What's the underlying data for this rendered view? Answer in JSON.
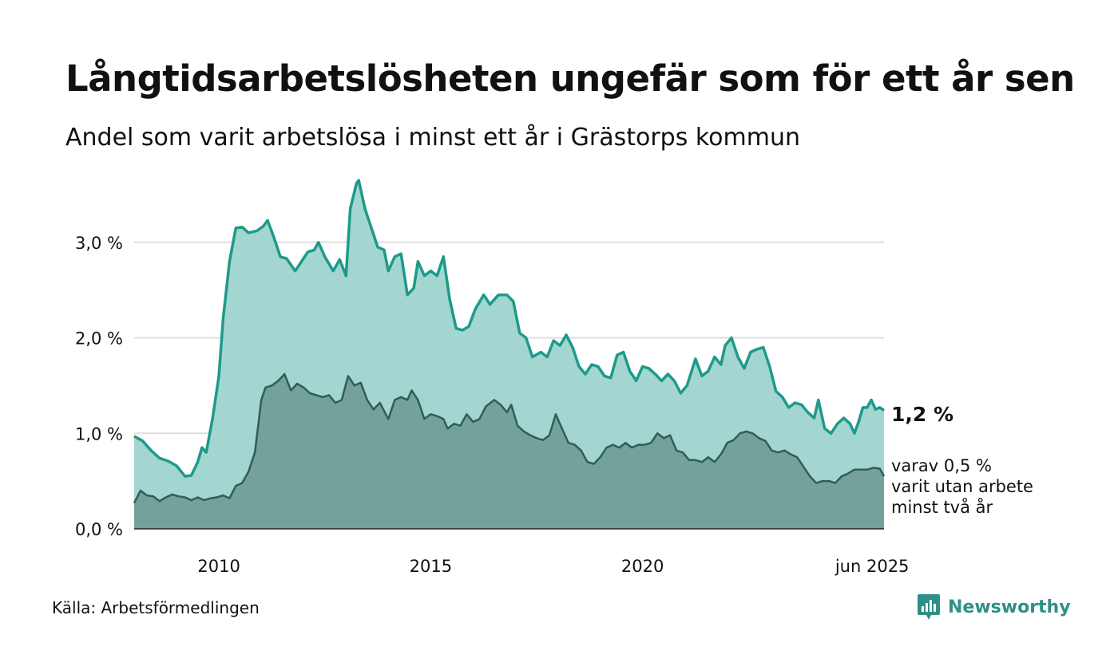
{
  "title": "Långtidsarbetslösheten ungefär som för ett år sen",
  "subtitle": "Andel som varit arbetslösa i minst ett år i Grästorps kommun",
  "source": "Källa: Arbetsförmedlingen",
  "brand": "Newsworthy",
  "colors": {
    "main_line": "#1d9a8a",
    "main_fill": "#a4d6d1",
    "sub_line": "#2f5e57",
    "sub_fill": "#74a29b",
    "grid": "#dddddd",
    "brand": "#2e8f86"
  },
  "icons": {
    "logo": "newsworthy-chat-bars-icon"
  },
  "chart_data": {
    "type": "area",
    "x_unit": "year (decimal, monthly data)",
    "xlim": [
      2008.0,
      2025.42
    ],
    "ylim": [
      0,
      3.7
    ],
    "grid": "horizontal",
    "y_ticks": [
      0,
      1,
      2,
      3
    ],
    "y_tick_labels": [
      "0,0 %",
      "1,0 %",
      "2,0 %",
      "3,0 %"
    ],
    "x_ticks": [
      2010,
      2015,
      2020,
      2025.42
    ],
    "x_tick_labels": [
      "2010",
      "2015",
      "2020",
      "jun 2025"
    ],
    "end_label": "1,2 %",
    "sub_note": [
      "varav 0,5 %",
      "varit utan arbete",
      "minst två år"
    ],
    "series": [
      {
        "points": [
          [
            2008.0,
            0.97
          ],
          [
            2008.2,
            0.92
          ],
          [
            2008.4,
            0.82
          ],
          [
            2008.6,
            0.74
          ],
          [
            2008.8,
            0.71
          ],
          [
            2009.0,
            0.66
          ],
          [
            2009.2,
            0.55
          ],
          [
            2009.35,
            0.56
          ],
          [
            2009.5,
            0.7
          ],
          [
            2009.6,
            0.85
          ],
          [
            2009.7,
            0.8
          ],
          [
            2009.85,
            1.15
          ],
          [
            2010.0,
            1.6
          ],
          [
            2010.1,
            2.2
          ],
          [
            2010.25,
            2.8
          ],
          [
            2010.4,
            3.15
          ],
          [
            2010.55,
            3.16
          ],
          [
            2010.7,
            3.1
          ],
          [
            2010.9,
            3.12
          ],
          [
            2011.05,
            3.17
          ],
          [
            2011.15,
            3.23
          ],
          [
            2011.3,
            3.05
          ],
          [
            2011.45,
            2.85
          ],
          [
            2011.6,
            2.83
          ],
          [
            2011.8,
            2.7
          ],
          [
            2011.95,
            2.8
          ],
          [
            2012.1,
            2.9
          ],
          [
            2012.25,
            2.92
          ],
          [
            2012.35,
            3.0
          ],
          [
            2012.5,
            2.85
          ],
          [
            2012.7,
            2.7
          ],
          [
            2012.85,
            2.82
          ],
          [
            2013.0,
            2.65
          ],
          [
            2013.1,
            3.35
          ],
          [
            2013.25,
            3.62
          ],
          [
            2013.3,
            3.65
          ],
          [
            2013.45,
            3.35
          ],
          [
            2013.6,
            3.15
          ],
          [
            2013.75,
            2.95
          ],
          [
            2013.9,
            2.92
          ],
          [
            2014.0,
            2.7
          ],
          [
            2014.15,
            2.85
          ],
          [
            2014.3,
            2.88
          ],
          [
            2014.45,
            2.45
          ],
          [
            2014.6,
            2.52
          ],
          [
            2014.7,
            2.8
          ],
          [
            2014.85,
            2.65
          ],
          [
            2015.0,
            2.7
          ],
          [
            2015.15,
            2.65
          ],
          [
            2015.3,
            2.85
          ],
          [
            2015.45,
            2.4
          ],
          [
            2015.6,
            2.1
          ],
          [
            2015.75,
            2.08
          ],
          [
            2015.9,
            2.12
          ],
          [
            2016.05,
            2.3
          ],
          [
            2016.25,
            2.45
          ],
          [
            2016.4,
            2.35
          ],
          [
            2016.6,
            2.45
          ],
          [
            2016.8,
            2.45
          ],
          [
            2016.95,
            2.38
          ],
          [
            2017.1,
            2.05
          ],
          [
            2017.25,
            2.0
          ],
          [
            2017.4,
            1.8
          ],
          [
            2017.6,
            1.85
          ],
          [
            2017.75,
            1.8
          ],
          [
            2017.9,
            1.97
          ],
          [
            2018.05,
            1.92
          ],
          [
            2018.2,
            2.03
          ],
          [
            2018.35,
            1.9
          ],
          [
            2018.5,
            1.7
          ],
          [
            2018.65,
            1.62
          ],
          [
            2018.8,
            1.72
          ],
          [
            2018.95,
            1.7
          ],
          [
            2019.1,
            1.6
          ],
          [
            2019.25,
            1.58
          ],
          [
            2019.4,
            1.82
          ],
          [
            2019.55,
            1.85
          ],
          [
            2019.7,
            1.65
          ],
          [
            2019.85,
            1.55
          ],
          [
            2020.0,
            1.7
          ],
          [
            2020.15,
            1.68
          ],
          [
            2020.3,
            1.62
          ],
          [
            2020.45,
            1.55
          ],
          [
            2020.6,
            1.62
          ],
          [
            2020.75,
            1.55
          ],
          [
            2020.9,
            1.42
          ],
          [
            2021.05,
            1.5
          ],
          [
            2021.25,
            1.78
          ],
          [
            2021.4,
            1.6
          ],
          [
            2021.55,
            1.65
          ],
          [
            2021.7,
            1.8
          ],
          [
            2021.85,
            1.72
          ],
          [
            2021.95,
            1.92
          ],
          [
            2022.1,
            2.0
          ],
          [
            2022.25,
            1.8
          ],
          [
            2022.4,
            1.68
          ],
          [
            2022.55,
            1.85
          ],
          [
            2022.7,
            1.88
          ],
          [
            2022.85,
            1.9
          ],
          [
            2023.0,
            1.7
          ],
          [
            2023.15,
            1.44
          ],
          [
            2023.3,
            1.38
          ],
          [
            2023.45,
            1.27
          ],
          [
            2023.6,
            1.32
          ],
          [
            2023.75,
            1.3
          ],
          [
            2023.9,
            1.22
          ],
          [
            2024.05,
            1.16
          ],
          [
            2024.15,
            1.35
          ],
          [
            2024.3,
            1.05
          ],
          [
            2024.45,
            1.0
          ],
          [
            2024.6,
            1.1
          ],
          [
            2024.75,
            1.16
          ],
          [
            2024.9,
            1.1
          ],
          [
            2025.0,
            1.0
          ],
          [
            2025.1,
            1.12
          ],
          [
            2025.2,
            1.27
          ],
          [
            2025.3,
            1.27
          ],
          [
            2025.4,
            1.35
          ],
          [
            2025.5,
            1.25
          ],
          [
            2025.6,
            1.27
          ],
          [
            2025.7,
            1.24
          ]
        ]
      },
      {
        "points": [
          [
            2008.0,
            0.27
          ],
          [
            2008.15,
            0.4
          ],
          [
            2008.3,
            0.35
          ],
          [
            2008.45,
            0.34
          ],
          [
            2008.6,
            0.29
          ],
          [
            2008.75,
            0.33
          ],
          [
            2008.9,
            0.36
          ],
          [
            2009.05,
            0.34
          ],
          [
            2009.2,
            0.33
          ],
          [
            2009.35,
            0.3
          ],
          [
            2009.5,
            0.33
          ],
          [
            2009.65,
            0.3
          ],
          [
            2009.8,
            0.32
          ],
          [
            2009.95,
            0.33
          ],
          [
            2010.1,
            0.35
          ],
          [
            2010.25,
            0.32
          ],
          [
            2010.4,
            0.45
          ],
          [
            2010.55,
            0.48
          ],
          [
            2010.7,
            0.6
          ],
          [
            2010.85,
            0.8
          ],
          [
            2011.0,
            1.35
          ],
          [
            2011.1,
            1.48
          ],
          [
            2011.25,
            1.5
          ],
          [
            2011.4,
            1.55
          ],
          [
            2011.55,
            1.62
          ],
          [
            2011.7,
            1.45
          ],
          [
            2011.85,
            1.52
          ],
          [
            2012.0,
            1.48
          ],
          [
            2012.15,
            1.42
          ],
          [
            2012.3,
            1.4
          ],
          [
            2012.45,
            1.38
          ],
          [
            2012.6,
            1.4
          ],
          [
            2012.75,
            1.32
          ],
          [
            2012.9,
            1.35
          ],
          [
            2013.05,
            1.6
          ],
          [
            2013.2,
            1.5
          ],
          [
            2013.35,
            1.53
          ],
          [
            2013.5,
            1.35
          ],
          [
            2013.65,
            1.25
          ],
          [
            2013.8,
            1.32
          ],
          [
            2014.0,
            1.15
          ],
          [
            2014.15,
            1.35
          ],
          [
            2014.3,
            1.38
          ],
          [
            2014.45,
            1.35
          ],
          [
            2014.55,
            1.45
          ],
          [
            2014.7,
            1.35
          ],
          [
            2014.85,
            1.15
          ],
          [
            2015.0,
            1.2
          ],
          [
            2015.15,
            1.18
          ],
          [
            2015.3,
            1.15
          ],
          [
            2015.4,
            1.05
          ],
          [
            2015.55,
            1.1
          ],
          [
            2015.7,
            1.08
          ],
          [
            2015.85,
            1.2
          ],
          [
            2016.0,
            1.12
          ],
          [
            2016.15,
            1.15
          ],
          [
            2016.3,
            1.28
          ],
          [
            2016.5,
            1.35
          ],
          [
            2016.65,
            1.3
          ],
          [
            2016.8,
            1.22
          ],
          [
            2016.9,
            1.3
          ],
          [
            2017.05,
            1.08
          ],
          [
            2017.2,
            1.02
          ],
          [
            2017.35,
            0.98
          ],
          [
            2017.5,
            0.95
          ],
          [
            2017.65,
            0.93
          ],
          [
            2017.8,
            0.98
          ],
          [
            2017.95,
            1.2
          ],
          [
            2018.1,
            1.05
          ],
          [
            2018.25,
            0.9
          ],
          [
            2018.4,
            0.88
          ],
          [
            2018.55,
            0.82
          ],
          [
            2018.7,
            0.7
          ],
          [
            2018.85,
            0.68
          ],
          [
            2019.0,
            0.75
          ],
          [
            2019.15,
            0.85
          ],
          [
            2019.3,
            0.88
          ],
          [
            2019.45,
            0.85
          ],
          [
            2019.6,
            0.9
          ],
          [
            2019.75,
            0.85
          ],
          [
            2019.9,
            0.88
          ],
          [
            2020.05,
            0.88
          ],
          [
            2020.2,
            0.9
          ],
          [
            2020.35,
            1.0
          ],
          [
            2020.5,
            0.95
          ],
          [
            2020.65,
            0.98
          ],
          [
            2020.8,
            0.82
          ],
          [
            2020.95,
            0.8
          ],
          [
            2021.1,
            0.72
          ],
          [
            2021.25,
            0.72
          ],
          [
            2021.4,
            0.7
          ],
          [
            2021.55,
            0.75
          ],
          [
            2021.7,
            0.7
          ],
          [
            2021.85,
            0.78
          ],
          [
            2022.0,
            0.9
          ],
          [
            2022.15,
            0.93
          ],
          [
            2022.3,
            1.0
          ],
          [
            2022.45,
            1.02
          ],
          [
            2022.6,
            1.0
          ],
          [
            2022.75,
            0.95
          ],
          [
            2022.9,
            0.92
          ],
          [
            2023.05,
            0.82
          ],
          [
            2023.2,
            0.8
          ],
          [
            2023.35,
            0.82
          ],
          [
            2023.5,
            0.78
          ],
          [
            2023.65,
            0.75
          ],
          [
            2023.8,
            0.65
          ],
          [
            2023.95,
            0.55
          ],
          [
            2024.1,
            0.48
          ],
          [
            2024.25,
            0.5
          ],
          [
            2024.4,
            0.5
          ],
          [
            2024.55,
            0.48
          ],
          [
            2024.7,
            0.55
          ],
          [
            2024.85,
            0.58
          ],
          [
            2025.0,
            0.62
          ],
          [
            2025.15,
            0.62
          ],
          [
            2025.3,
            0.62
          ],
          [
            2025.45,
            0.64
          ],
          [
            2025.6,
            0.63
          ],
          [
            2025.7,
            0.55
          ]
        ]
      }
    ]
  }
}
